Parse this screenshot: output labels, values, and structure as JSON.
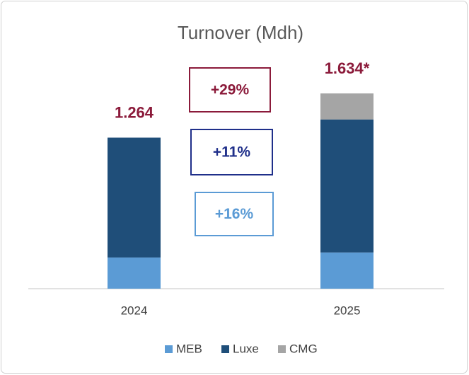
{
  "chart_data": {
    "type": "stacked_bar",
    "title": "Turnover (Mdh)",
    "categories": [
      "2024",
      "2025"
    ],
    "series": [
      {
        "name": "MEB",
        "color": "#5b9bd5",
        "values": [
          261,
          303
        ]
      },
      {
        "name": "Luxe",
        "color": "#1f4e79",
        "values": [
          1003,
          1113
        ]
      },
      {
        "name": "CMG",
        "color": "#a5a5a5",
        "values": [
          null,
          218
        ]
      }
    ],
    "totals": {
      "values": [
        1264,
        1634
      ],
      "value_labels": [
        "1.264",
        "1.634*"
      ],
      "color": "#8b1a3a"
    },
    "annotations": [
      {
        "text": "+29%",
        "color": "#8b1a3a"
      },
      {
        "text": "+11%",
        "color": "#1f2f8a"
      },
      {
        "text": "+16%",
        "color": "#5b9bd5"
      }
    ],
    "ylim": [
      0,
      1800
    ],
    "legend": "bottom"
  }
}
